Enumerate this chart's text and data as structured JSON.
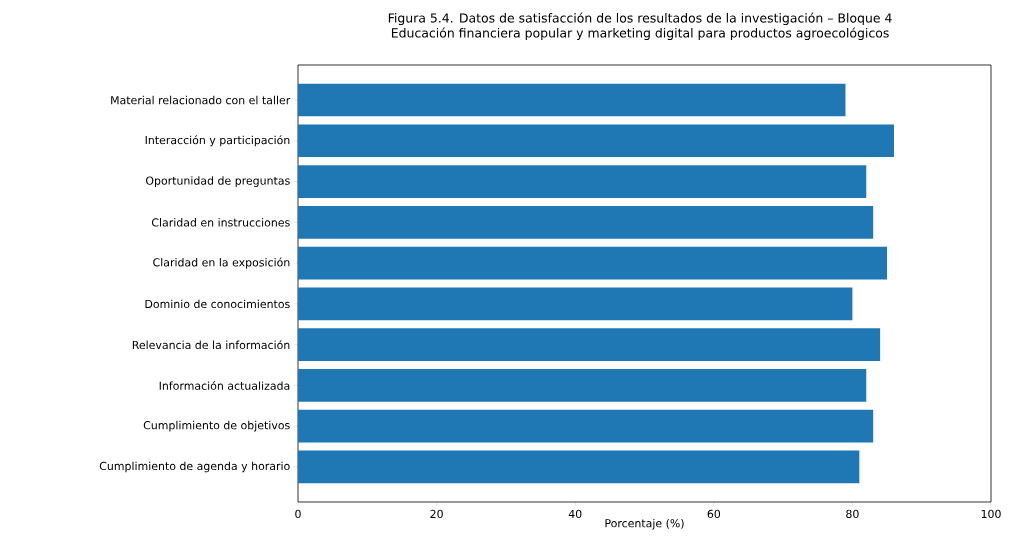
{
  "chart_data": {
    "type": "bar",
    "orientation": "horizontal",
    "title": "Figura 5.4. Datos de satisfacción de los resultados de la investigación – Bloque 4",
    "subtitle": "Educación financiera popular y marketing digital para productos agroecológicos",
    "xlabel": "Porcentaje (%)",
    "categories": [
      "Material relacionado con el taller",
      "Interacción y participación",
      "Oportunidad de preguntas",
      "Claridad en instrucciones",
      "Claridad en la exposición",
      "Dominio de conocimientos",
      "Relevancia de la información",
      "Información actualizada",
      "Cumplimiento de objetivos",
      "Cumplimiento de agenda y horario"
    ],
    "values": [
      79,
      86,
      82,
      83,
      85,
      80,
      84,
      82,
      83,
      81
    ],
    "color": "#1f77b4",
    "xlim": [
      0,
      100
    ],
    "xticks": [
      0,
      20,
      40,
      60,
      80,
      100
    ]
  }
}
